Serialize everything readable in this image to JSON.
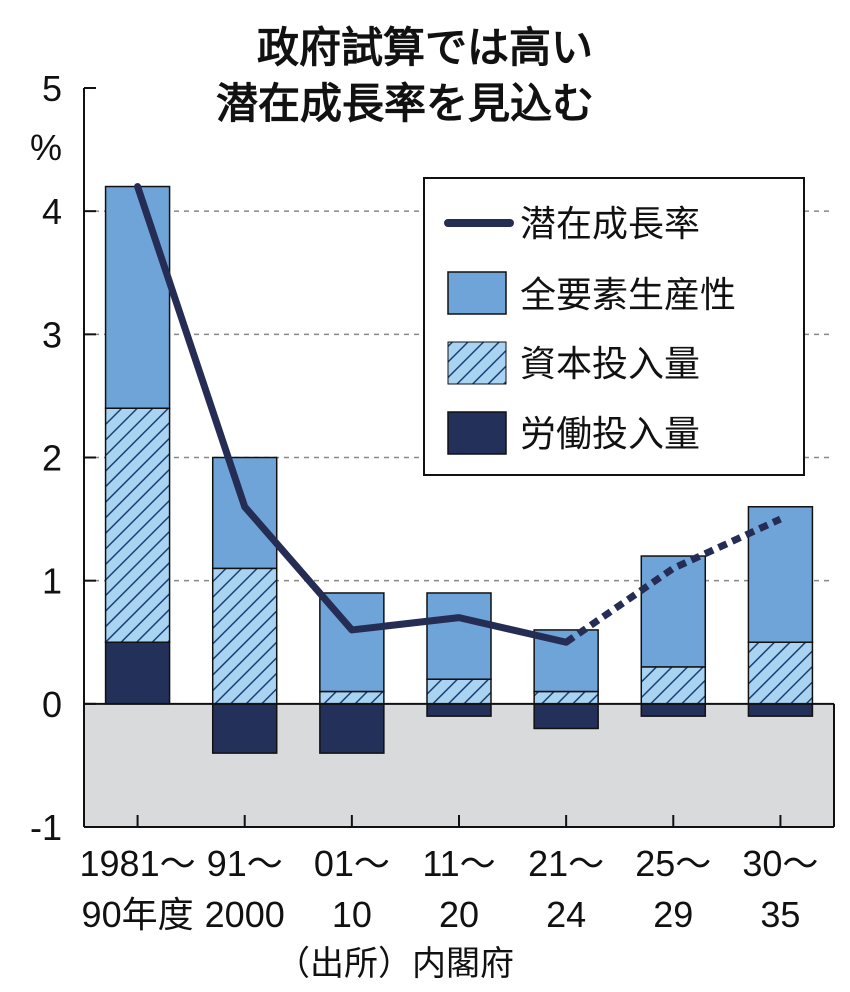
{
  "colors": {
    "tfp": "#6ea4d8",
    "capital": "#a8d4f2",
    "capital_hatch": "#1f3e74",
    "labor": "#23305a",
    "line": "#252d55",
    "negative_area": "#d9dadc",
    "grid": "#888888"
  },
  "chart_data": {
    "type": "bar",
    "stacked": true,
    "title": [
      "政府試算では高い",
      "潜在成長率を見込む"
    ],
    "ylabel": "%",
    "ylim": [
      -1,
      5
    ],
    "yticks": [
      -1,
      0,
      1,
      2,
      3,
      4,
      5
    ],
    "grid": "dashed horizontal",
    "legend_position": "top-right",
    "categories": [
      [
        "1981～",
        "90年度"
      ],
      [
        "91～",
        "2000"
      ],
      [
        "01～",
        "10"
      ],
      [
        "11～",
        "20"
      ],
      [
        "21～",
        "24"
      ],
      [
        "25～",
        "29"
      ],
      [
        "30～",
        "35"
      ]
    ],
    "series": [
      {
        "name": "労働投入量",
        "key": "labor",
        "values": [
          0.5,
          -0.4,
          -0.4,
          -0.1,
          -0.2,
          -0.1,
          -0.1
        ]
      },
      {
        "name": "資本投入量",
        "key": "capital",
        "values": [
          1.9,
          1.1,
          0.1,
          0.2,
          0.1,
          0.3,
          0.5
        ]
      },
      {
        "name": "全要素生産性",
        "key": "tfp",
        "values": [
          1.8,
          0.9,
          0.8,
          0.7,
          0.5,
          0.9,
          1.1
        ]
      }
    ],
    "line": {
      "name": "潜在成長率",
      "values": [
        4.2,
        1.6,
        0.6,
        0.7,
        0.5,
        1.1,
        1.5
      ],
      "dashed_from_index": 4
    },
    "legend": [
      "潜在成長率",
      "全要素生産性",
      "資本投入量",
      "労働投入量"
    ],
    "source": "（出所）内閣府"
  }
}
